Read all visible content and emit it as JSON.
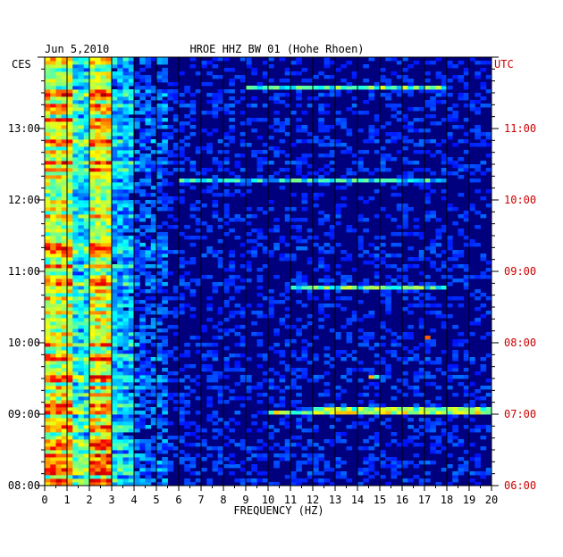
{
  "header": {
    "date": "Jun 5,2010",
    "station": "HROE HHZ BW 01 (Hohe Rhoen)"
  },
  "chart_data": {
    "type": "heatmap",
    "title": "HROE HHZ BW 01 (Hohe Rhoen)",
    "date": "Jun 5,2010",
    "xlabel": "FREQUENCY (HZ)",
    "left_axis_label": "CES",
    "right_axis_label": "UTC",
    "xlim": [
      0,
      20
    ],
    "x_ticks": [
      "0",
      "1",
      "2",
      "3",
      "4",
      "5",
      "6",
      "7",
      "8",
      "9",
      "10",
      "11",
      "12",
      "13",
      "14",
      "15",
      "16",
      "17",
      "18",
      "19",
      "20"
    ],
    "y_ticks_left": [
      "08:00",
      "09:00",
      "10:00",
      "11:00",
      "12:00",
      "13:00"
    ],
    "y_ticks_right": [
      "06:00",
      "07:00",
      "08:00",
      "09:00",
      "10:00",
      "11:00"
    ],
    "time_range_local_hours": [
      8.0,
      14.0
    ],
    "time_range_utc_hours": [
      6.0,
      12.0
    ],
    "grid": true,
    "colormap": "jet",
    "bands": [
      {
        "f_from": 0.0,
        "f_to": 1.2,
        "intensity": 0.7
      },
      {
        "f_from": 1.2,
        "f_to": 1.8,
        "intensity": 0.45
      },
      {
        "f_from": 1.8,
        "f_to": 3.0,
        "intensity": 0.72
      },
      {
        "f_from": 3.0,
        "f_to": 4.0,
        "intensity": 0.35
      },
      {
        "f_from": 4.0,
        "f_to": 5.5,
        "intensity": 0.2
      },
      {
        "f_from": 5.5,
        "f_to": 20.0,
        "intensity": 0.1
      }
    ],
    "highlights": [
      {
        "t_local": 9.0,
        "f_from": 10.0,
        "f_to": 20.0,
        "intensity": 0.55
      },
      {
        "t_local": 9.05,
        "f_from": 12.0,
        "f_to": 20.0,
        "intensity": 0.5
      },
      {
        "t_local": 13.55,
        "f_from": 9.0,
        "f_to": 18.0,
        "intensity": 0.45
      },
      {
        "t_local": 12.25,
        "f_from": 6.0,
        "f_to": 18.0,
        "intensity": 0.35
      },
      {
        "t_local": 10.75,
        "f_from": 11.0,
        "f_to": 18.0,
        "intensity": 0.45
      },
      {
        "t_local": 10.05,
        "f_from": 16.8,
        "f_to": 17.2,
        "intensity": 0.8
      },
      {
        "t_local": 9.5,
        "f_from": 14.4,
        "f_to": 14.8,
        "intensity": 0.55
      }
    ]
  }
}
